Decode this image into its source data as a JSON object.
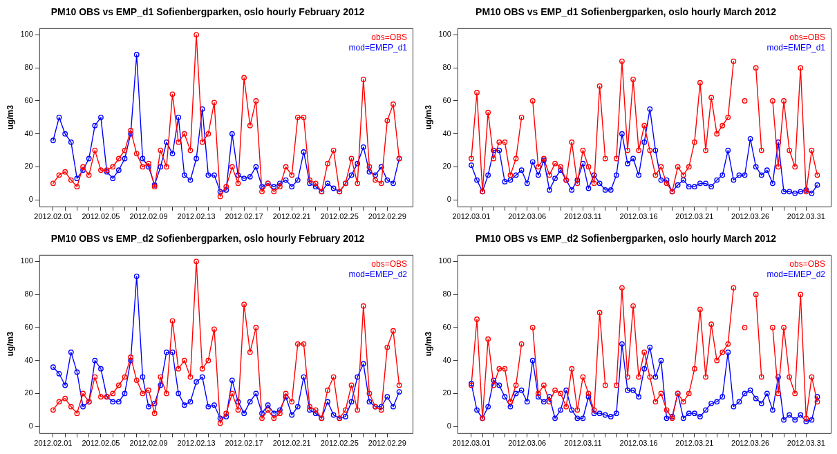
{
  "chart_data": [
    {
      "type": "line",
      "title": "PM10 OBS vs EMP_d1 Sofienbergparken, oslo hourly February 2012",
      "ylabel": "ug/m3",
      "marker": "circle",
      "legend": "top right",
      "grid": false,
      "x": [
        "2012-02-01T00:00",
        "2012-02-01T12:00",
        "2012-02-02T00:00",
        "2012-02-02T12:00",
        "2012-02-03T00:00",
        "2012-02-03T12:00",
        "2012-02-04T00:00",
        "2012-02-04T12:00",
        "2012-02-05T00:00",
        "2012-02-05T12:00",
        "2012-02-06T00:00",
        "2012-02-06T12:00",
        "2012-02-07T00:00",
        "2012-02-07T12:00",
        "2012-02-08T00:00",
        "2012-02-08T12:00",
        "2012-02-09T00:00",
        "2012-02-09T12:00",
        "2012-02-10T00:00",
        "2012-02-10T12:00",
        "2012-02-11T00:00",
        "2012-02-11T12:00",
        "2012-02-12T00:00",
        "2012-02-12T12:00",
        "2012-02-13T00:00",
        "2012-02-13T12:00",
        "2012-02-14T00:00",
        "2012-02-14T12:00",
        "2012-02-15T00:00",
        "2012-02-15T12:00",
        "2012-02-16T00:00",
        "2012-02-16T12:00",
        "2012-02-17T00:00",
        "2012-02-17T12:00",
        "2012-02-18T00:00",
        "2012-02-18T12:00",
        "2012-02-19T00:00",
        "2012-02-19T12:00",
        "2012-02-20T00:00",
        "2012-02-20T12:00",
        "2012-02-21T00:00",
        "2012-02-21T12:00",
        "2012-02-22T00:00",
        "2012-02-22T12:00",
        "2012-02-23T00:00",
        "2012-02-23T12:00",
        "2012-02-24T00:00",
        "2012-02-24T12:00",
        "2012-02-25T00:00",
        "2012-02-25T12:00",
        "2012-02-26T00:00",
        "2012-02-26T12:00",
        "2012-02-27T00:00",
        "2012-02-27T12:00",
        "2012-02-28T00:00",
        "2012-02-28T12:00",
        "2012-02-29T00:00",
        "2012-02-29T12:00",
        "2012-03-01T00:00"
      ],
      "xlim": [
        "2012-01-30T20:00",
        "2012-03-02T03:00"
      ],
      "xticks": [
        {
          "value": "2012-02-01",
          "label": "2012.02.01"
        },
        {
          "value": "2012-02-02",
          "label": null
        },
        {
          "value": "2012-02-03",
          "label": null
        },
        {
          "value": "2012-02-04",
          "label": null
        },
        {
          "value": "2012-02-05",
          "label": "2012.02.05"
        },
        {
          "value": "2012-02-06",
          "label": null
        },
        {
          "value": "2012-02-07",
          "label": null
        },
        {
          "value": "2012-02-08",
          "label": null
        },
        {
          "value": "2012-02-09",
          "label": "2012.02.09"
        },
        {
          "value": "2012-02-10",
          "label": null
        },
        {
          "value": "2012-02-11",
          "label": null
        },
        {
          "value": "2012-02-12",
          "label": null
        },
        {
          "value": "2012-02-13",
          "label": "2012.02.13"
        },
        {
          "value": "2012-02-14",
          "label": null
        },
        {
          "value": "2012-02-15",
          "label": null
        },
        {
          "value": "2012-02-16",
          "label": null
        },
        {
          "value": "2012-02-17",
          "label": "2012.02.17"
        },
        {
          "value": "2012-02-18",
          "label": null
        },
        {
          "value": "2012-02-19",
          "label": null
        },
        {
          "value": "2012-02-20",
          "label": null
        },
        {
          "value": "2012-02-21",
          "label": "2012.02.21"
        },
        {
          "value": "2012-02-22",
          "label": null
        },
        {
          "value": "2012-02-23",
          "label": null
        },
        {
          "value": "2012-02-24",
          "label": null
        },
        {
          "value": "2012-02-25",
          "label": "2012.02.25"
        },
        {
          "value": "2012-02-26",
          "label": null
        },
        {
          "value": "2012-02-27",
          "label": null
        },
        {
          "value": "2012-02-28",
          "label": null
        },
        {
          "value": "2012-02-29",
          "label": "2012.02.29"
        }
      ],
      "ylim": [
        -4,
        104
      ],
      "yticks": [
        0,
        20,
        40,
        60,
        80,
        100
      ],
      "series": [
        {
          "name": "obs=OBS",
          "color": "#ff0000",
          "values": [
            10,
            15,
            17,
            12,
            8,
            20,
            15,
            30,
            18,
            18,
            20,
            25,
            30,
            42,
            28,
            20,
            22,
            8,
            30,
            20,
            64,
            35,
            40,
            30,
            100,
            35,
            40,
            59,
            2,
            8,
            20,
            10,
            74,
            45,
            60,
            5,
            10,
            5,
            8,
            20,
            15,
            50,
            50,
            12,
            10,
            5,
            22,
            30,
            5,
            10,
            25,
            10,
            73,
            20,
            12,
            10,
            48,
            58,
            25
          ]
        },
        {
          "name": "mod=EMEP_d1",
          "color": "#0000ff",
          "values": [
            36,
            50,
            40,
            35,
            13,
            18,
            25,
            45,
            50,
            17,
            13,
            18,
            25,
            40,
            88,
            25,
            20,
            9,
            20,
            35,
            28,
            50,
            15,
            12,
            25,
            55,
            15,
            15,
            5,
            6,
            40,
            15,
            13,
            14,
            20,
            8,
            10,
            8,
            10,
            12,
            8,
            12,
            29,
            10,
            8,
            5,
            10,
            7,
            5,
            10,
            15,
            22,
            32,
            17,
            15,
            20,
            12,
            10,
            25
          ]
        }
      ]
    },
    {
      "type": "line",
      "title": "PM10 OBS vs EMP_d1 Sofienbergparken, oslo hourly March 2012",
      "ylabel": "ug/m3",
      "marker": "circle",
      "legend": "top right",
      "grid": false,
      "x": [
        "2012-03-01T00:00",
        "2012-03-01T12:00",
        "2012-03-02T00:00",
        "2012-03-02T12:00",
        "2012-03-03T00:00",
        "2012-03-03T12:00",
        "2012-03-04T00:00",
        "2012-03-04T12:00",
        "2012-03-05T00:00",
        "2012-03-05T12:00",
        "2012-03-06T00:00",
        "2012-03-06T12:00",
        "2012-03-07T00:00",
        "2012-03-07T12:00",
        "2012-03-08T00:00",
        "2012-03-08T12:00",
        "2012-03-09T00:00",
        "2012-03-09T12:00",
        "2012-03-10T00:00",
        "2012-03-10T12:00",
        "2012-03-11T00:00",
        "2012-03-11T12:00",
        "2012-03-12T00:00",
        "2012-03-12T12:00",
        "2012-03-13T00:00",
        "2012-03-13T12:00",
        "2012-03-14T00:00",
        "2012-03-14T12:00",
        "2012-03-15T00:00",
        "2012-03-15T12:00",
        "2012-03-16T00:00",
        "2012-03-16T12:00",
        "2012-03-17T00:00",
        "2012-03-17T12:00",
        "2012-03-18T00:00",
        "2012-03-18T12:00",
        "2012-03-19T00:00",
        "2012-03-19T12:00",
        "2012-03-20T00:00",
        "2012-03-20T12:00",
        "2012-03-21T00:00",
        "2012-03-21T12:00",
        "2012-03-22T00:00",
        "2012-03-22T12:00",
        "2012-03-23T00:00",
        "2012-03-23T12:00",
        "2012-03-24T00:00",
        "2012-03-24T12:00",
        "2012-03-25T00:00",
        "2012-03-25T12:00",
        "2012-03-26T00:00",
        "2012-03-26T12:00",
        "2012-03-27T00:00",
        "2012-03-27T12:00",
        "2012-03-28T00:00",
        "2012-03-28T12:00",
        "2012-03-29T00:00",
        "2012-03-29T12:00",
        "2012-03-30T00:00",
        "2012-03-30T12:00",
        "2012-03-31T00:00",
        "2012-03-31T12:00",
        "2012-04-01T00:00"
      ],
      "xlim": [
        "2012-02-28T18:00",
        "2012-04-02T05:00"
      ],
      "xticks": [
        {
          "value": "2012-03-01",
          "label": "2012.03.01"
        },
        {
          "value": "2012-03-02",
          "label": null
        },
        {
          "value": "2012-03-03",
          "label": null
        },
        {
          "value": "2012-03-04",
          "label": null
        },
        {
          "value": "2012-03-05",
          "label": null
        },
        {
          "value": "2012-03-06",
          "label": "2012.03.06"
        },
        {
          "value": "2012-03-07",
          "label": null
        },
        {
          "value": "2012-03-08",
          "label": null
        },
        {
          "value": "2012-03-09",
          "label": null
        },
        {
          "value": "2012-03-10",
          "label": null
        },
        {
          "value": "2012-03-11",
          "label": "2012.03.11"
        },
        {
          "value": "2012-03-12",
          "label": null
        },
        {
          "value": "2012-03-13",
          "label": null
        },
        {
          "value": "2012-03-14",
          "label": null
        },
        {
          "value": "2012-03-15",
          "label": null
        },
        {
          "value": "2012-03-16",
          "label": "2012.03.16"
        },
        {
          "value": "2012-03-17",
          "label": null
        },
        {
          "value": "2012-03-18",
          "label": null
        },
        {
          "value": "2012-03-19",
          "label": null
        },
        {
          "value": "2012-03-20",
          "label": null
        },
        {
          "value": "2012-03-21",
          "label": "2012.03.21"
        },
        {
          "value": "2012-03-22",
          "label": null
        },
        {
          "value": "2012-03-23",
          "label": null
        },
        {
          "value": "2012-03-24",
          "label": null
        },
        {
          "value": "2012-03-25",
          "label": null
        },
        {
          "value": "2012-03-26",
          "label": "2012.03.26"
        },
        {
          "value": "2012-03-27",
          "label": null
        },
        {
          "value": "2012-03-28",
          "label": null
        },
        {
          "value": "2012-03-29",
          "label": null
        },
        {
          "value": "2012-03-30",
          "label": null
        },
        {
          "value": "2012-03-31",
          "label": "2012.03.31"
        }
      ],
      "ylim": [
        -4,
        104
      ],
      "yticks": [
        0,
        20,
        40,
        60,
        80,
        100
      ],
      "series": [
        {
          "name": "obs=OBS",
          "color": "#ff0000",
          "values": [
            25,
            65,
            5,
            53,
            25,
            35,
            35,
            15,
            25,
            50,
            null,
            60,
            20,
            25,
            15,
            22,
            20,
            12,
            35,
            10,
            30,
            20,
            10,
            69,
            25,
            null,
            25,
            84,
            30,
            73,
            30,
            45,
            30,
            15,
            20,
            10,
            5,
            20,
            15,
            20,
            35,
            71,
            30,
            62,
            40,
            45,
            50,
            84,
            null,
            60,
            null,
            80,
            30,
            null,
            60,
            20,
            60,
            30,
            20,
            80,
            5,
            30,
            15
          ]
        },
        {
          "name": "mod=EMEP_d1",
          "color": "#0000ff",
          "values": [
            21,
            12,
            5,
            15,
            30,
            30,
            11,
            12,
            15,
            18,
            10,
            23,
            15,
            24,
            6,
            13,
            18,
            12,
            6,
            12,
            22,
            7,
            15,
            10,
            6,
            6,
            15,
            40,
            22,
            25,
            15,
            35,
            55,
            30,
            12,
            12,
            5,
            9,
            12,
            8,
            8,
            10,
            10,
            8,
            12,
            15,
            30,
            12,
            15,
            15,
            37,
            20,
            15,
            18,
            10,
            35,
            5,
            5,
            4,
            5,
            6,
            4,
            9
          ]
        }
      ]
    },
    {
      "type": "line",
      "title": "PM10 OBS vs EMP_d2 Sofienbergparken, oslo hourly February 2012",
      "ylabel": "ug/m3",
      "marker": "circle",
      "legend": "top right",
      "grid": false,
      "x": [
        "2012-02-01T00:00",
        "2012-02-01T12:00",
        "2012-02-02T00:00",
        "2012-02-02T12:00",
        "2012-02-03T00:00",
        "2012-02-03T12:00",
        "2012-02-04T00:00",
        "2012-02-04T12:00",
        "2012-02-05T00:00",
        "2012-02-05T12:00",
        "2012-02-06T00:00",
        "2012-02-06T12:00",
        "2012-02-07T00:00",
        "2012-02-07T12:00",
        "2012-02-08T00:00",
        "2012-02-08T12:00",
        "2012-02-09T00:00",
        "2012-02-09T12:00",
        "2012-02-10T00:00",
        "2012-02-10T12:00",
        "2012-02-11T00:00",
        "2012-02-11T12:00",
        "2012-02-12T00:00",
        "2012-02-12T12:00",
        "2012-02-13T00:00",
        "2012-02-13T12:00",
        "2012-02-14T00:00",
        "2012-02-14T12:00",
        "2012-02-15T00:00",
        "2012-02-15T12:00",
        "2012-02-16T00:00",
        "2012-02-16T12:00",
        "2012-02-17T00:00",
        "2012-02-17T12:00",
        "2012-02-18T00:00",
        "2012-02-18T12:00",
        "2012-02-19T00:00",
        "2012-02-19T12:00",
        "2012-02-20T00:00",
        "2012-02-20T12:00",
        "2012-02-21T00:00",
        "2012-02-21T12:00",
        "2012-02-22T00:00",
        "2012-02-22T12:00",
        "2012-02-23T00:00",
        "2012-02-23T12:00",
        "2012-02-24T00:00",
        "2012-02-24T12:00",
        "2012-02-25T00:00",
        "2012-02-25T12:00",
        "2012-02-26T00:00",
        "2012-02-26T12:00",
        "2012-02-27T00:00",
        "2012-02-27T12:00",
        "2012-02-28T00:00",
        "2012-02-28T12:00",
        "2012-02-29T00:00",
        "2012-02-29T12:00",
        "2012-03-01T00:00"
      ],
      "xlim": [
        "2012-01-30T20:00",
        "2012-03-02T03:00"
      ],
      "xticks": [
        {
          "value": "2012-02-01",
          "label": "2012.02.01"
        },
        {
          "value": "2012-02-02",
          "label": null
        },
        {
          "value": "2012-02-03",
          "label": null
        },
        {
          "value": "2012-02-04",
          "label": null
        },
        {
          "value": "2012-02-05",
          "label": "2012.02.05"
        },
        {
          "value": "2012-02-06",
          "label": null
        },
        {
          "value": "2012-02-07",
          "label": null
        },
        {
          "value": "2012-02-08",
          "label": null
        },
        {
          "value": "2012-02-09",
          "label": "2012.02.09"
        },
        {
          "value": "2012-02-10",
          "label": null
        },
        {
          "value": "2012-02-11",
          "label": null
        },
        {
          "value": "2012-02-12",
          "label": null
        },
        {
          "value": "2012-02-13",
          "label": "2012.02.13"
        },
        {
          "value": "2012-02-14",
          "label": null
        },
        {
          "value": "2012-02-15",
          "label": null
        },
        {
          "value": "2012-02-16",
          "label": null
        },
        {
          "value": "2012-02-17",
          "label": "2012.02.17"
        },
        {
          "value": "2012-02-18",
          "label": null
        },
        {
          "value": "2012-02-19",
          "label": null
        },
        {
          "value": "2012-02-20",
          "label": null
        },
        {
          "value": "2012-02-21",
          "label": "2012.02.21"
        },
        {
          "value": "2012-02-22",
          "label": null
        },
        {
          "value": "2012-02-23",
          "label": null
        },
        {
          "value": "2012-02-24",
          "label": null
        },
        {
          "value": "2012-02-25",
          "label": "2012.02.25"
        },
        {
          "value": "2012-02-26",
          "label": null
        },
        {
          "value": "2012-02-27",
          "label": null
        },
        {
          "value": "2012-02-28",
          "label": null
        },
        {
          "value": "2012-02-29",
          "label": "2012.02.29"
        }
      ],
      "ylim": [
        -4,
        104
      ],
      "yticks": [
        0,
        20,
        40,
        60,
        80,
        100
      ],
      "series": [
        {
          "name": "obs=OBS",
          "color": "#ff0000",
          "values": [
            10,
            15,
            17,
            12,
            8,
            20,
            15,
            30,
            18,
            18,
            20,
            25,
            30,
            42,
            28,
            20,
            22,
            8,
            30,
            20,
            64,
            35,
            40,
            30,
            100,
            35,
            40,
            59,
            2,
            8,
            20,
            10,
            74,
            45,
            60,
            5,
            10,
            5,
            8,
            20,
            15,
            50,
            50,
            12,
            10,
            5,
            22,
            30,
            5,
            10,
            25,
            10,
            73,
            20,
            12,
            10,
            48,
            58,
            25
          ]
        },
        {
          "name": "mod=EMEP_d2",
          "color": "#0000ff",
          "values": [
            36,
            32,
            25,
            45,
            33,
            12,
            15,
            40,
            35,
            18,
            15,
            15,
            20,
            40,
            91,
            30,
            12,
            14,
            25,
            45,
            45,
            20,
            13,
            15,
            27,
            30,
            12,
            13,
            5,
            6,
            28,
            15,
            8,
            15,
            20,
            8,
            13,
            8,
            10,
            18,
            7,
            12,
            30,
            10,
            8,
            5,
            15,
            7,
            5,
            6,
            15,
            30,
            38,
            15,
            12,
            12,
            18,
            12,
            21
          ]
        }
      ]
    },
    {
      "type": "line",
      "title": "PM10 OBS vs EMP_d2 Sofienbergparken, oslo hourly March 2012",
      "ylabel": "ug/m3",
      "marker": "circle",
      "legend": "top right",
      "grid": false,
      "x": [
        "2012-03-01T00:00",
        "2012-03-01T12:00",
        "2012-03-02T00:00",
        "2012-03-02T12:00",
        "2012-03-03T00:00",
        "2012-03-03T12:00",
        "2012-03-04T00:00",
        "2012-03-04T12:00",
        "2012-03-05T00:00",
        "2012-03-05T12:00",
        "2012-03-06T00:00",
        "2012-03-06T12:00",
        "2012-03-07T00:00",
        "2012-03-07T12:00",
        "2012-03-08T00:00",
        "2012-03-08T12:00",
        "2012-03-09T00:00",
        "2012-03-09T12:00",
        "2012-03-10T00:00",
        "2012-03-10T12:00",
        "2012-03-11T00:00",
        "2012-03-11T12:00",
        "2012-03-12T00:00",
        "2012-03-12T12:00",
        "2012-03-13T00:00",
        "2012-03-13T12:00",
        "2012-03-14T00:00",
        "2012-03-14T12:00",
        "2012-03-15T00:00",
        "2012-03-15T12:00",
        "2012-03-16T00:00",
        "2012-03-16T12:00",
        "2012-03-17T00:00",
        "2012-03-17T12:00",
        "2012-03-18T00:00",
        "2012-03-18T12:00",
        "2012-03-19T00:00",
        "2012-03-19T12:00",
        "2012-03-20T00:00",
        "2012-03-20T12:00",
        "2012-03-21T00:00",
        "2012-03-21T12:00",
        "2012-03-22T00:00",
        "2012-03-22T12:00",
        "2012-03-23T00:00",
        "2012-03-23T12:00",
        "2012-03-24T00:00",
        "2012-03-24T12:00",
        "2012-03-25T00:00",
        "2012-03-25T12:00",
        "2012-03-26T00:00",
        "2012-03-26T12:00",
        "2012-03-27T00:00",
        "2012-03-27T12:00",
        "2012-03-28T00:00",
        "2012-03-28T12:00",
        "2012-03-29T00:00",
        "2012-03-29T12:00",
        "2012-03-30T00:00",
        "2012-03-30T12:00",
        "2012-03-31T00:00",
        "2012-03-31T12:00",
        "2012-04-01T00:00"
      ],
      "xlim": [
        "2012-02-28T18:00",
        "2012-04-02T05:00"
      ],
      "xticks": [
        {
          "value": "2012-03-01",
          "label": "2012.03.01"
        },
        {
          "value": "2012-03-02",
          "label": null
        },
        {
          "value": "2012-03-03",
          "label": null
        },
        {
          "value": "2012-03-04",
          "label": null
        },
        {
          "value": "2012-03-05",
          "label": null
        },
        {
          "value": "2012-03-06",
          "label": "2012.03.06"
        },
        {
          "value": "2012-03-07",
          "label": null
        },
        {
          "value": "2012-03-08",
          "label": null
        },
        {
          "value": "2012-03-09",
          "label": null
        },
        {
          "value": "2012-03-10",
          "label": null
        },
        {
          "value": "2012-03-11",
          "label": "2012.03.11"
        },
        {
          "value": "2012-03-12",
          "label": null
        },
        {
          "value": "2012-03-13",
          "label": null
        },
        {
          "value": "2012-03-14",
          "label": null
        },
        {
          "value": "2012-03-15",
          "label": null
        },
        {
          "value": "2012-03-16",
          "label": "2012.03.16"
        },
        {
          "value": "2012-03-17",
          "label": null
        },
        {
          "value": "2012-03-18",
          "label": null
        },
        {
          "value": "2012-03-19",
          "label": null
        },
        {
          "value": "2012-03-20",
          "label": null
        },
        {
          "value": "2012-03-21",
          "label": "2012.03.21"
        },
        {
          "value": "2012-03-22",
          "label": null
        },
        {
          "value": "2012-03-23",
          "label": null
        },
        {
          "value": "2012-03-24",
          "label": null
        },
        {
          "value": "2012-03-25",
          "label": null
        },
        {
          "value": "2012-03-26",
          "label": "2012.03.26"
        },
        {
          "value": "2012-03-27",
          "label": null
        },
        {
          "value": "2012-03-28",
          "label": null
        },
        {
          "value": "2012-03-29",
          "label": null
        },
        {
          "value": "2012-03-30",
          "label": null
        },
        {
          "value": "2012-03-31",
          "label": "2012.03.31"
        }
      ],
      "ylim": [
        -4,
        104
      ],
      "yticks": [
        0,
        20,
        40,
        60,
        80,
        100
      ],
      "series": [
        {
          "name": "obs=OBS",
          "color": "#ff0000",
          "values": [
            25,
            65,
            5,
            53,
            25,
            35,
            35,
            15,
            25,
            50,
            null,
            60,
            20,
            25,
            15,
            22,
            20,
            12,
            35,
            10,
            30,
            20,
            10,
            69,
            25,
            null,
            25,
            84,
            30,
            73,
            30,
            45,
            30,
            15,
            20,
            10,
            5,
            20,
            15,
            20,
            35,
            71,
            30,
            62,
            40,
            45,
            50,
            84,
            null,
            60,
            null,
            80,
            30,
            null,
            60,
            20,
            60,
            30,
            20,
            80,
            5,
            30,
            15
          ]
        },
        {
          "name": "mod=EMEP_d2",
          "color": "#0000ff",
          "values": [
            26,
            10,
            5,
            12,
            28,
            25,
            18,
            12,
            20,
            22,
            15,
            40,
            18,
            15,
            18,
            5,
            10,
            22,
            10,
            5,
            5,
            18,
            8,
            8,
            7,
            6,
            8,
            50,
            22,
            22,
            18,
            35,
            48,
            30,
            40,
            5,
            6,
            20,
            5,
            8,
            8,
            6,
            10,
            14,
            15,
            18,
            45,
            12,
            15,
            20,
            22,
            17,
            14,
            20,
            10,
            30,
            4,
            7,
            4,
            7,
            3,
            4,
            18
          ]
        }
      ]
    }
  ]
}
